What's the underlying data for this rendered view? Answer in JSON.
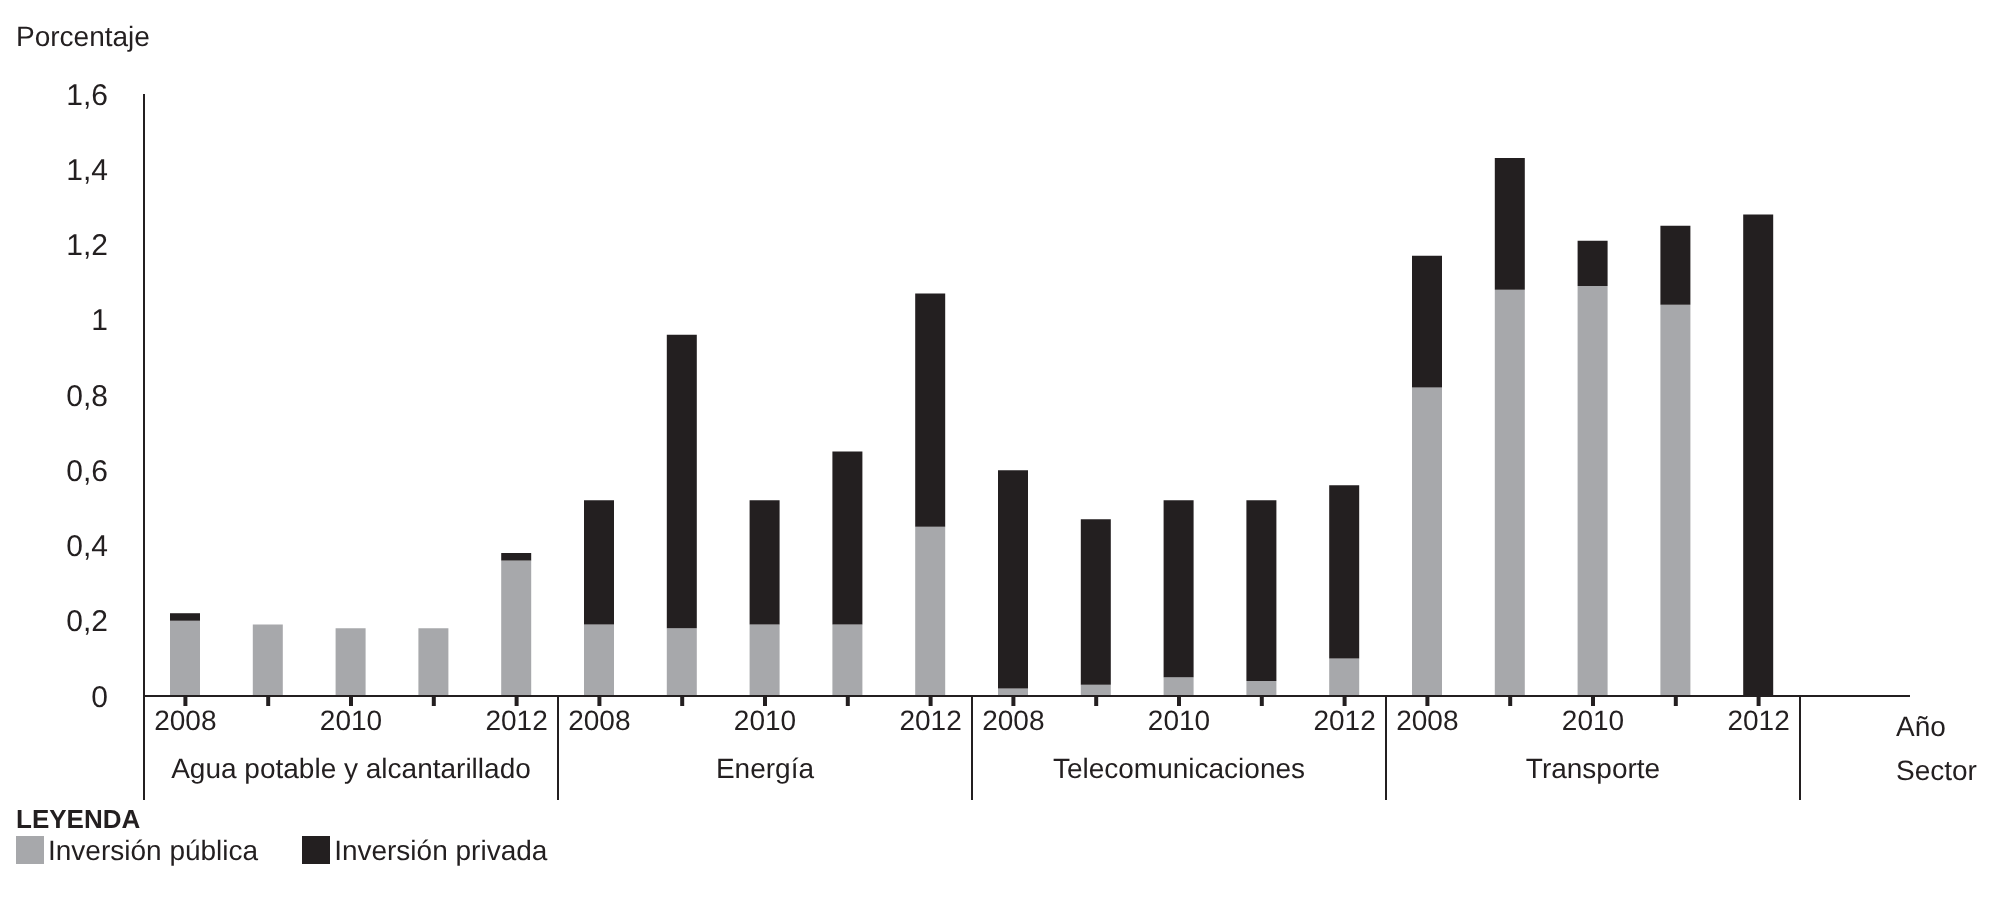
{
  "chart_data": {
    "type": "bar",
    "stacked": true,
    "ylabel": "Porcentaje",
    "xlabel": "Año",
    "legend_title": "LEYENDA",
    "legend": "bottom",
    "categories": [
      "2008",
      null,
      "2010",
      null,
      "2012",
      "2008",
      null,
      "2010",
      null,
      "2012",
      "2008",
      null,
      "2010",
      null,
      "2012",
      "2008",
      null,
      "2010",
      null,
      "2012"
    ],
    "series": [
      {
        "name": "Inversión pública",
        "color": "#a7a8ab",
        "values": [
          0.2,
          0.19,
          0.18,
          0.18,
          0.36,
          0.19,
          0.18,
          0.19,
          0.19,
          0.45,
          0.02,
          0.03,
          0.05,
          0.04,
          0.1,
          0.82,
          1.08,
          1.09,
          1.04,
          0
        ]
      },
      {
        "name": "Inversión privada",
        "color": "#231f20",
        "values": [
          0.02,
          0,
          0,
          0,
          0.02,
          0.33,
          0.78,
          0.33,
          0.46,
          0.62,
          0.58,
          0.44,
          0.47,
          0.48,
          0.46,
          0.35,
          0.35,
          0.12,
          0.21,
          1.28
        ]
      }
    ],
    "ylim": [
      0,
      1.6
    ],
    "yticks": [
      0,
      {
        "value": 0.2,
        "label": "0,2"
      },
      {
        "value": 0.4,
        "label": "0,4"
      },
      {
        "value": 0.6,
        "label": "0,6"
      },
      {
        "value": 0.8,
        "label": "0,8"
      },
      1,
      {
        "value": 1.2,
        "label": "1,2"
      },
      {
        "value": 1.4,
        "label": "1,4"
      },
      {
        "value": 1.6,
        "label": "1,6"
      }
    ],
    "grid": false,
    "annotations": [
      "Sector",
      "Agua potable y alcantarillado",
      "Energía",
      "Telecomunicaciones",
      "Transporte"
    ]
  }
}
